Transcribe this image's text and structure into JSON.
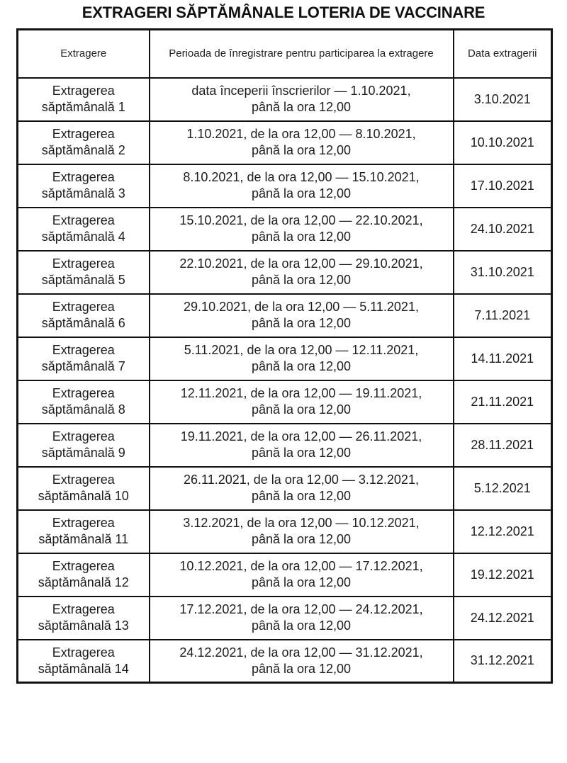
{
  "page": {
    "title": "EXTRAGERI SĂPTĂMÂNALE LOTERIA DE VACCINARE"
  },
  "table": {
    "headers": [
      "Extragere",
      "Perioada de înregistrare pentru participarea la extragere",
      "Data extragerii"
    ],
    "rows": [
      {
        "draw": "Extragerea\nsăptămânală 1",
        "period": "data începerii înscrierilor — 1.10.2021,\npână la ora 12,00",
        "date": "3.10.2021"
      },
      {
        "draw": "Extragerea\nsăptămânală 2",
        "period": "1.10.2021, de la ora 12,00 — 8.10.2021,\npână la ora 12,00",
        "date": "10.10.2021"
      },
      {
        "draw": "Extragerea\nsăptămânală 3",
        "period": "8.10.2021, de la ora 12,00 — 15.10.2021,\npână la ora 12,00",
        "date": "17.10.2021"
      },
      {
        "draw": "Extragerea\nsăptămânală 4",
        "period": "15.10.2021, de la ora 12,00 — 22.10.2021,\npână la ora 12,00",
        "date": "24.10.2021"
      },
      {
        "draw": "Extragerea\nsăptămânală 5",
        "period": "22.10.2021, de la ora 12,00 — 29.10.2021,\npână la ora 12,00",
        "date": "31.10.2021"
      },
      {
        "draw": "Extragerea\nsăptămânală 6",
        "period": "29.10.2021, de la ora 12,00 — 5.11.2021,\npână la ora 12,00",
        "date": "7.11.2021"
      },
      {
        "draw": "Extragerea\nsăptămânală 7",
        "period": "5.11.2021, de la ora 12,00 — 12.11.2021,\npână la ora 12,00",
        "date": "14.11.2021"
      },
      {
        "draw": "Extragerea\nsăptămânală 8",
        "period": "12.11.2021, de la ora 12,00 — 19.11.2021,\npână la ora 12,00",
        "date": "21.11.2021"
      },
      {
        "draw": "Extragerea\nsăptămânală 9",
        "period": "19.11.2021, de la ora 12,00 — 26.11.2021,\npână la ora 12,00",
        "date": "28.11.2021"
      },
      {
        "draw": "Extragerea\nsăptămânală 10",
        "period": "26.11.2021, de la ora 12,00 — 3.12.2021,\npână la ora 12,00",
        "date": "5.12.2021"
      },
      {
        "draw": "Extragerea\nsăptămânală 11",
        "period": "3.12.2021, de la ora 12,00 — 10.12.2021,\npână la ora 12,00",
        "date": "12.12.2021"
      },
      {
        "draw": "Extragerea\nsăptămânală 12",
        "period": "10.12.2021, de la ora 12,00 — 17.12.2021,\npână la ora 12,00",
        "date": "19.12.2021"
      },
      {
        "draw": "Extragerea\nsăptămânală 13",
        "period": "17.12.2021, de la ora 12,00 — 24.12.2021,\npână la ora 12,00",
        "date": "24.12.2021"
      },
      {
        "draw": "Extragerea\nsăptămânală 14",
        "period": "24.12.2021, de la ora 12,00 — 31.12.2021,\npână la ora 12,00",
        "date": "31.12.2021"
      }
    ]
  }
}
